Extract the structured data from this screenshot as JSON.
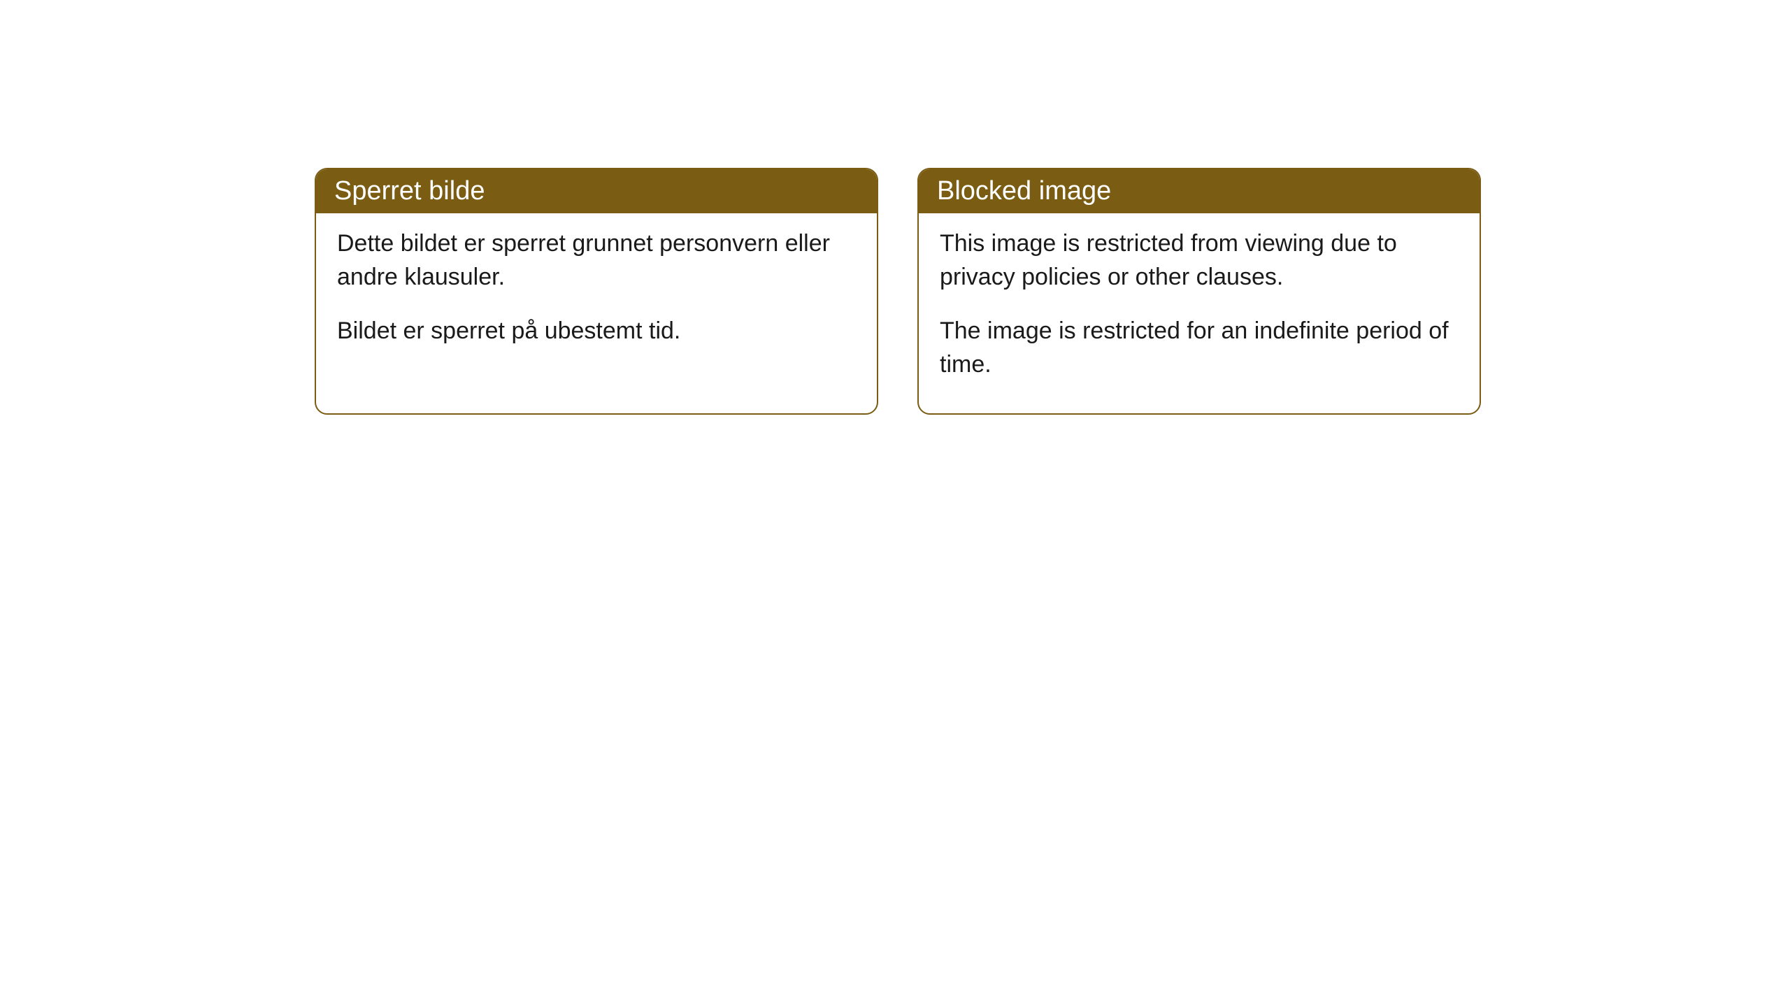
{
  "cards": [
    {
      "title": "Sperret bilde",
      "paragraph1": "Dette bildet er sperret grunnet personvern eller andre klausuler.",
      "paragraph2": "Bildet er sperret på ubestemt tid."
    },
    {
      "title": "Blocked image",
      "paragraph1": "This image is restricted from viewing due to privacy policies or other clauses.",
      "paragraph2": "The image is restricted for an indefinite period of time."
    }
  ],
  "style": {
    "header_bg": "#7a5c13",
    "header_text": "#ffffff",
    "border_color": "#7a5c13",
    "body_text": "#1a1a1a",
    "body_bg": "#ffffff",
    "border_radius": 18,
    "title_fontsize": 38,
    "body_fontsize": 34
  }
}
